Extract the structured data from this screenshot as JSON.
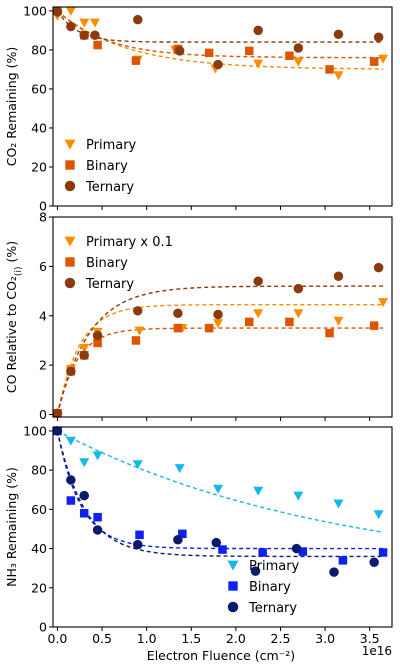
{
  "colors": {
    "primary_orange": "#ff8c00",
    "binary_orange": "#dd5500",
    "ternary_brown": "#8b3a0e",
    "primary_blue": "#16b8ea",
    "binary_blue": "#1020f0",
    "ternary_navy": "#0c1a6e"
  },
  "xaxis": {
    "label": "Electron Fluence (cm⁻²)",
    "multiplier": "1e16",
    "ticks": [
      "0.0",
      "0.5",
      "1.0",
      "1.5",
      "2.0",
      "2.5",
      "3.0",
      "3.5"
    ],
    "xlim": [
      -0.05,
      3.75
    ]
  },
  "chart_data": [
    {
      "type": "scatter",
      "ylabel": "CO₂ Remaining (%)",
      "ylim": [
        0,
        102
      ],
      "yticks": [
        "0",
        "20",
        "40",
        "60",
        "80",
        "100"
      ],
      "legend_position": "bottom-left",
      "series": [
        {
          "name": "Primary",
          "marker": "triangle-down",
          "color": "#ff8c00",
          "x": [
            0.0,
            0.15,
            0.3,
            0.42,
            0.9,
            1.32,
            1.77,
            2.25,
            2.7,
            3.15,
            3.65
          ],
          "y": [
            97.5,
            100.0,
            94.0,
            94.0,
            75.0,
            80.0,
            70.5,
            73.0,
            74.0,
            67.0,
            75.5
          ],
          "fit": {
            "plateau": 70.0,
            "amplitude": 30.0,
            "rate": 1.3
          }
        },
        {
          "name": "Binary",
          "marker": "square",
          "color": "#dd5500",
          "x": [
            0.0,
            0.3,
            0.45,
            0.88,
            1.35,
            1.7,
            2.15,
            2.6,
            3.05,
            3.55
          ],
          "y": [
            100.0,
            87.5,
            82.5,
            74.5,
            80.5,
            78.5,
            79.5,
            77.0,
            70.0,
            74.0
          ],
          "fit": {
            "plateau": 76.0,
            "amplitude": 24.0,
            "rate": 1.8
          }
        },
        {
          "name": "Ternary",
          "marker": "circle",
          "color": "#8b3a0e",
          "x": [
            0.0,
            0.15,
            0.3,
            0.42,
            0.9,
            1.37,
            1.8,
            2.25,
            2.7,
            3.15,
            3.6
          ],
          "y": [
            99.5,
            92.0,
            87.5,
            87.5,
            95.5,
            79.5,
            72.5,
            90.0,
            81.0,
            88.0,
            86.5
          ],
          "fit": {
            "plateau": 84.0,
            "amplitude": 16.0,
            "rate": 4.5
          }
        }
      ]
    },
    {
      "type": "scatter",
      "ylabel": "CO Relative to CO₂",
      "ylabel_subscript": "(i)",
      "ylabel_unit": " (%)",
      "ylim": [
        -0.1,
        8.0
      ],
      "yticks": [
        "0",
        "2",
        "4",
        "6",
        "8"
      ],
      "legend_position": "top-left",
      "series": [
        {
          "name": "Primary x 0.1",
          "marker": "triangle-down",
          "color": "#ff8c00",
          "x": [
            0.0,
            0.15,
            0.3,
            0.45,
            0.92,
            1.4,
            1.8,
            2.25,
            2.7,
            3.15,
            3.65
          ],
          "y": [
            0.05,
            1.85,
            2.7,
            3.35,
            3.4,
            3.5,
            3.7,
            4.1,
            4.1,
            3.8,
            4.55
          ],
          "fit": {
            "plateau": 4.45,
            "rate": 4.0
          }
        },
        {
          "name": "Binary",
          "marker": "square",
          "color": "#dd5500",
          "x": [
            0.0,
            0.15,
            0.3,
            0.45,
            0.88,
            1.35,
            1.7,
            2.15,
            2.6,
            3.05,
            3.55
          ],
          "y": [
            0.05,
            1.75,
            2.4,
            2.9,
            3.0,
            3.5,
            3.5,
            3.75,
            3.75,
            3.3,
            3.6
          ],
          "fit": {
            "plateau": 3.5,
            "rate": 4.5
          }
        },
        {
          "name": "Ternary",
          "marker": "circle",
          "color": "#8b3a0e",
          "x": [
            0.0,
            0.15,
            0.3,
            0.45,
            0.9,
            1.35,
            1.8,
            2.25,
            2.7,
            3.15,
            3.6
          ],
          "y": [
            0.05,
            1.75,
            2.4,
            3.2,
            4.2,
            4.1,
            4.05,
            5.4,
            5.1,
            5.6,
            5.95
          ],
          "fit": {
            "plateau": 5.2,
            "rate": 2.8
          }
        }
      ]
    },
    {
      "type": "scatter",
      "ylabel": "NH₃ Remaining (%)",
      "ylim": [
        0,
        102
      ],
      "yticks": [
        "0",
        "20",
        "40",
        "60",
        "80",
        "100"
      ],
      "legend_position": "bottom-right",
      "series": [
        {
          "name": "Primary",
          "marker": "triangle-down",
          "color": "#16b8ea",
          "x": [
            0.0,
            0.15,
            0.3,
            0.45,
            0.9,
            1.37,
            1.8,
            2.25,
            2.7,
            3.15,
            3.6
          ],
          "y": [
            100.0,
            95.0,
            84.0,
            87.5,
            83.0,
            81.0,
            70.5,
            69.5,
            67.0,
            63.0,
            57.5
          ],
          "fit": {
            "plateau": 25.0,
            "amplitude": 75.0,
            "rate": 0.32
          }
        },
        {
          "name": "Binary",
          "marker": "square",
          "color": "#1020f0",
          "x": [
            0.0,
            0.15,
            0.3,
            0.45,
            0.92,
            1.4,
            1.85,
            2.3,
            2.75,
            3.2,
            3.65
          ],
          "y": [
            100.0,
            64.5,
            58.0,
            56.0,
            47.0,
            47.5,
            39.5,
            38.0,
            38.5,
            34.0,
            38.0
          ],
          "fit": {
            "plateau": 40.0,
            "amplitude": 60.0,
            "rate": 3.8
          }
        },
        {
          "name": "Ternary",
          "marker": "circle",
          "color": "#0c1a6e",
          "x": [
            0.0,
            0.15,
            0.3,
            0.45,
            0.9,
            1.35,
            1.78,
            2.22,
            2.68,
            3.1,
            3.55
          ],
          "y": [
            100.0,
            75.0,
            67.0,
            49.5,
            42.0,
            44.5,
            43.0,
            28.5,
            40.0,
            28.0,
            33.0
          ],
          "fit": {
            "plateau": 36.0,
            "amplitude": 64.0,
            "rate": 3.2
          }
        }
      ]
    }
  ]
}
